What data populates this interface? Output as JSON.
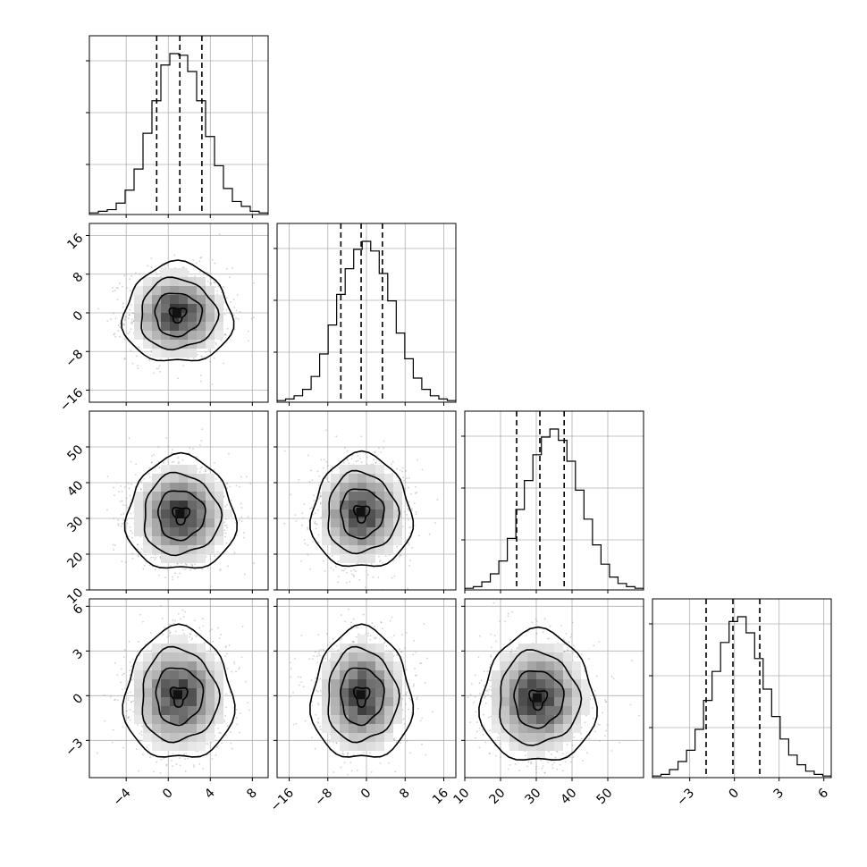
{
  "chart_data": {
    "type": "corner",
    "parameters": [
      {
        "range": [
          -7.5,
          9.5
        ],
        "ticks": [
          -4,
          0,
          4,
          8
        ],
        "tick_labels": [
          "−4",
          "0",
          "4",
          "8"
        ],
        "quantiles": [
          -1.1,
          1.1,
          3.2
        ],
        "hist": [
          1,
          2,
          3,
          7,
          15,
          28,
          50,
          70,
          92,
          99,
          98,
          88,
          70,
          48,
          30,
          16,
          8,
          5,
          2,
          1
        ]
      },
      {
        "range": [
          -18.5,
          18.5
        ],
        "ticks": [
          -16,
          -8,
          0,
          8,
          16
        ],
        "tick_labels": [
          "−16",
          "−8",
          "0",
          "8",
          "16"
        ],
        "quantiles": [
          -5.3,
          -1.1,
          3.3
        ],
        "hist": [
          1,
          2,
          4,
          8,
          16,
          30,
          48,
          67,
          83,
          95,
          100,
          94,
          80,
          63,
          43,
          27,
          15,
          8,
          4,
          2,
          1
        ]
      },
      {
        "range": [
          10,
          60
        ],
        "ticks": [
          10,
          20,
          30,
          40,
          50
        ],
        "tick_labels": [
          "10",
          "20",
          "30",
          "40",
          "50"
        ],
        "quantiles": [
          24.5,
          31.0,
          37.8
        ],
        "hist": [
          1,
          2,
          5,
          10,
          18,
          32,
          50,
          68,
          84,
          95,
          100,
          93,
          80,
          62,
          44,
          28,
          16,
          8,
          4,
          2,
          1
        ]
      },
      {
        "range": [
          -5.5,
          6.5
        ],
        "ticks": [
          -3,
          0,
          3,
          6
        ],
        "tick_labels": [
          "−3",
          "0",
          "3",
          "6"
        ],
        "quantiles": [
          -1.9,
          -0.1,
          1.7
        ],
        "hist": [
          1,
          2,
          5,
          10,
          17,
          30,
          48,
          66,
          84,
          97,
          100,
          90,
          74,
          55,
          38,
          24,
          14,
          8,
          4,
          2,
          1
        ]
      }
    ],
    "pairs": [
      {
        "row": 1,
        "col": 0,
        "center": [
          0.9,
          -0.3
        ],
        "sigma": [
          2.1,
          4.2
        ]
      },
      {
        "row": 2,
        "col": 0,
        "center": [
          1.2,
          31.0
        ],
        "sigma": [
          2.1,
          6.5
        ]
      },
      {
        "row": 2,
        "col": 1,
        "center": [
          -1.0,
          31.5
        ],
        "sigma": [
          4.2,
          6.5
        ]
      },
      {
        "row": 3,
        "col": 0,
        "center": [
          1.0,
          0.0
        ],
        "sigma": [
          2.1,
          1.8
        ]
      },
      {
        "row": 3,
        "col": 1,
        "center": [
          -1.0,
          0.0
        ],
        "sigma": [
          4.2,
          1.8
        ]
      },
      {
        "row": 3,
        "col": 2,
        "center": [
          30.5,
          -0.2
        ],
        "sigma": [
          6.5,
          1.8
        ]
      }
    ],
    "grid": true,
    "colors": {
      "line": "#000000",
      "grid": "#b0b0b0",
      "scatter": "#9a9a9a"
    }
  }
}
